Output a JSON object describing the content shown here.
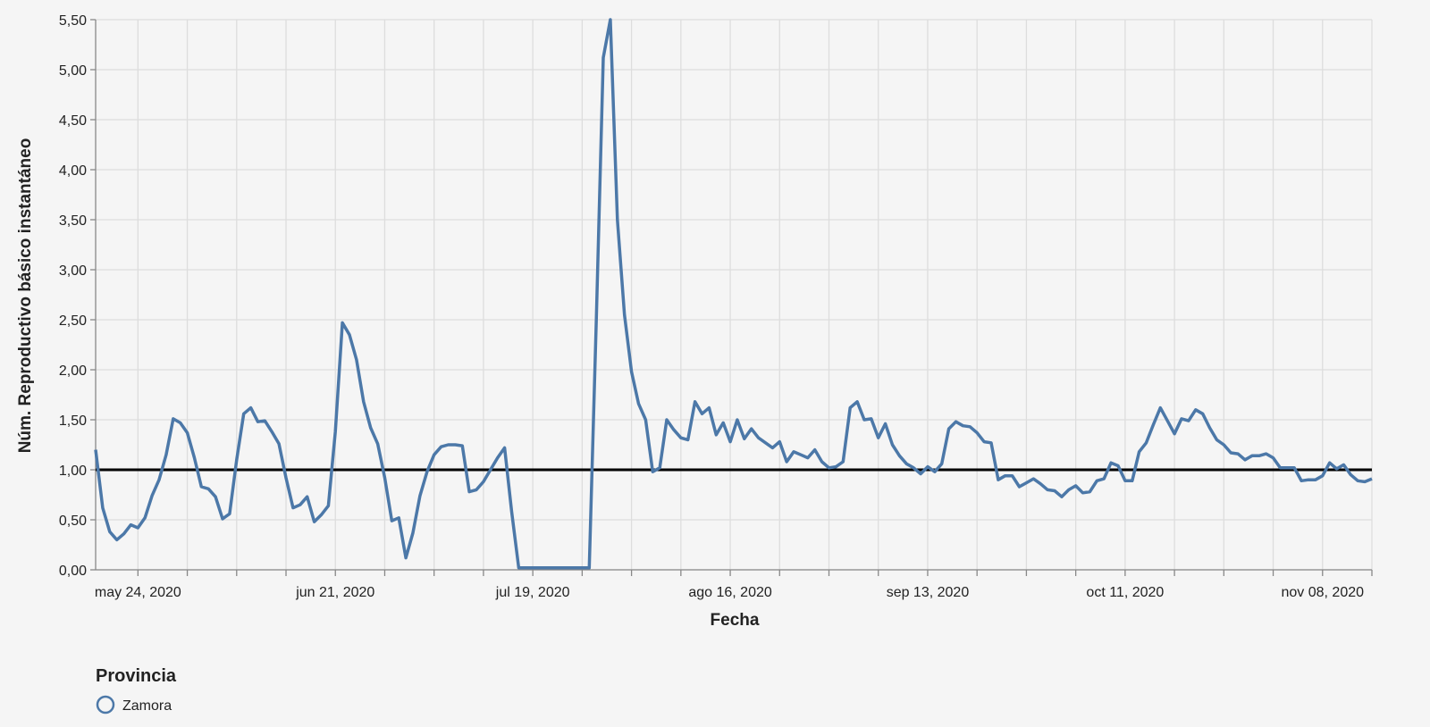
{
  "chart_data": {
    "type": "line",
    "xlabel": "Fecha",
    "ylabel": "Núm. Reproductivo básico instantáneo",
    "x_start": "2020-05-18",
    "x_end": "2020-11-15",
    "ylim": [
      0,
      5.5
    ],
    "y_ticks": [
      0,
      0.5,
      1.0,
      1.5,
      2.0,
      2.5,
      3.0,
      3.5,
      4.0,
      4.5,
      5.0,
      5.5
    ],
    "y_tick_labels": [
      "0,00",
      "0,50",
      "1,00",
      "1,50",
      "2,00",
      "2,50",
      "3,00",
      "3,50",
      "4,00",
      "4,50",
      "5,00",
      "5,50"
    ],
    "x_tick_labels": [
      {
        "date": "2020-05-24",
        "label": "may 24, 2020"
      },
      {
        "date": "2020-06-21",
        "label": "jun 21, 2020"
      },
      {
        "date": "2020-07-19",
        "label": "jul 19, 2020"
      },
      {
        "date": "2020-08-16",
        "label": "ago 16, 2020"
      },
      {
        "date": "2020-09-13",
        "label": "sep 13, 2020"
      },
      {
        "date": "2020-10-11",
        "label": "oct 11, 2020"
      },
      {
        "date": "2020-11-08",
        "label": "nov 08, 2020"
      }
    ],
    "reference_line": 1.0,
    "grid": true,
    "legend": {
      "title": "Provincia",
      "placement": "bottom-left"
    },
    "series": [
      {
        "name": "Zamora",
        "color": "#4c78a8",
        "points": [
          [
            "2020-05-18",
            1.2
          ],
          [
            "2020-05-19",
            0.62
          ],
          [
            "2020-05-20",
            0.38
          ],
          [
            "2020-05-21",
            0.3
          ],
          [
            "2020-05-22",
            0.36
          ],
          [
            "2020-05-23",
            0.45
          ],
          [
            "2020-05-24",
            0.42
          ],
          [
            "2020-05-25",
            0.52
          ],
          [
            "2020-05-26",
            0.74
          ],
          [
            "2020-05-27",
            0.9
          ],
          [
            "2020-05-28",
            1.15
          ],
          [
            "2020-05-29",
            1.51
          ],
          [
            "2020-05-30",
            1.47
          ],
          [
            "2020-05-31",
            1.37
          ],
          [
            "2020-06-01",
            1.12
          ],
          [
            "2020-06-02",
            0.83
          ],
          [
            "2020-06-03",
            0.81
          ],
          [
            "2020-06-04",
            0.73
          ],
          [
            "2020-06-05",
            0.51
          ],
          [
            "2020-06-06",
            0.56
          ],
          [
            "2020-06-07",
            1.1
          ],
          [
            "2020-06-08",
            1.56
          ],
          [
            "2020-06-09",
            1.62
          ],
          [
            "2020-06-10",
            1.48
          ],
          [
            "2020-06-11",
            1.49
          ],
          [
            "2020-06-12",
            1.38
          ],
          [
            "2020-06-13",
            1.26
          ],
          [
            "2020-06-14",
            0.92
          ],
          [
            "2020-06-15",
            0.62
          ],
          [
            "2020-06-16",
            0.65
          ],
          [
            "2020-06-17",
            0.73
          ],
          [
            "2020-06-18",
            0.48
          ],
          [
            "2020-06-19",
            0.55
          ],
          [
            "2020-06-20",
            0.64
          ],
          [
            "2020-06-21",
            1.38
          ],
          [
            "2020-06-22",
            2.47
          ],
          [
            "2020-06-23",
            2.35
          ],
          [
            "2020-06-24",
            2.1
          ],
          [
            "2020-06-25",
            1.68
          ],
          [
            "2020-06-26",
            1.42
          ],
          [
            "2020-06-27",
            1.26
          ],
          [
            "2020-06-28",
            0.92
          ],
          [
            "2020-06-29",
            0.49
          ],
          [
            "2020-06-30",
            0.52
          ],
          [
            "2020-07-01",
            0.12
          ],
          [
            "2020-07-02",
            0.37
          ],
          [
            "2020-07-03",
            0.74
          ],
          [
            "2020-07-04",
            0.98
          ],
          [
            "2020-07-05",
            1.15
          ],
          [
            "2020-07-06",
            1.23
          ],
          [
            "2020-07-07",
            1.25
          ],
          [
            "2020-07-08",
            1.25
          ],
          [
            "2020-07-09",
            1.24
          ],
          [
            "2020-07-10",
            0.78
          ],
          [
            "2020-07-11",
            0.8
          ],
          [
            "2020-07-12",
            0.88
          ],
          [
            "2020-07-13",
            1.0
          ],
          [
            "2020-07-14",
            1.12
          ],
          [
            "2020-07-15",
            1.22
          ],
          [
            "2020-07-16",
            0.58
          ],
          [
            "2020-07-17",
            0.02
          ],
          [
            "2020-07-18",
            0.02
          ],
          [
            "2020-07-19",
            0.02
          ],
          [
            "2020-07-20",
            0.02
          ],
          [
            "2020-07-21",
            0.02
          ],
          [
            "2020-07-22",
            0.02
          ],
          [
            "2020-07-23",
            0.02
          ],
          [
            "2020-07-24",
            0.02
          ],
          [
            "2020-07-25",
            0.02
          ],
          [
            "2020-07-26",
            0.02
          ],
          [
            "2020-07-27",
            0.02
          ],
          [
            "2020-07-28",
            2.5
          ],
          [
            "2020-07-29",
            5.12
          ],
          [
            "2020-07-30",
            5.5
          ],
          [
            "2020-07-31",
            3.5
          ],
          [
            "2020-08-01",
            2.55
          ],
          [
            "2020-08-02",
            1.98
          ],
          [
            "2020-08-03",
            1.66
          ],
          [
            "2020-08-04",
            1.5
          ],
          [
            "2020-08-05",
            0.98
          ],
          [
            "2020-08-06",
            1.02
          ],
          [
            "2020-08-07",
            1.5
          ],
          [
            "2020-08-08",
            1.4
          ],
          [
            "2020-08-09",
            1.32
          ],
          [
            "2020-08-10",
            1.3
          ],
          [
            "2020-08-11",
            1.68
          ],
          [
            "2020-08-12",
            1.56
          ],
          [
            "2020-08-13",
            1.62
          ],
          [
            "2020-08-14",
            1.35
          ],
          [
            "2020-08-15",
            1.47
          ],
          [
            "2020-08-16",
            1.28
          ],
          [
            "2020-08-17",
            1.5
          ],
          [
            "2020-08-18",
            1.31
          ],
          [
            "2020-08-19",
            1.41
          ],
          [
            "2020-08-20",
            1.32
          ],
          [
            "2020-08-21",
            1.27
          ],
          [
            "2020-08-22",
            1.22
          ],
          [
            "2020-08-23",
            1.28
          ],
          [
            "2020-08-24",
            1.08
          ],
          [
            "2020-08-25",
            1.18
          ],
          [
            "2020-08-26",
            1.15
          ],
          [
            "2020-08-27",
            1.12
          ],
          [
            "2020-08-28",
            1.2
          ],
          [
            "2020-08-29",
            1.08
          ],
          [
            "2020-08-30",
            1.02
          ],
          [
            "2020-08-31",
            1.03
          ],
          [
            "2020-09-01",
            1.08
          ],
          [
            "2020-09-02",
            1.62
          ],
          [
            "2020-09-03",
            1.68
          ],
          [
            "2020-09-04",
            1.5
          ],
          [
            "2020-09-05",
            1.51
          ],
          [
            "2020-09-06",
            1.32
          ],
          [
            "2020-09-07",
            1.46
          ],
          [
            "2020-09-08",
            1.25
          ],
          [
            "2020-09-09",
            1.14
          ],
          [
            "2020-09-10",
            1.06
          ],
          [
            "2020-09-11",
            1.02
          ],
          [
            "2020-09-12",
            0.96
          ],
          [
            "2020-09-13",
            1.03
          ],
          [
            "2020-09-14",
            0.98
          ],
          [
            "2020-09-15",
            1.06
          ],
          [
            "2020-09-16",
            1.41
          ],
          [
            "2020-09-17",
            1.48
          ],
          [
            "2020-09-18",
            1.44
          ],
          [
            "2020-09-19",
            1.43
          ],
          [
            "2020-09-20",
            1.37
          ],
          [
            "2020-09-21",
            1.28
          ],
          [
            "2020-09-22",
            1.27
          ],
          [
            "2020-09-23",
            0.9
          ],
          [
            "2020-09-24",
            0.94
          ],
          [
            "2020-09-25",
            0.94
          ],
          [
            "2020-09-26",
            0.83
          ],
          [
            "2020-09-27",
            0.87
          ],
          [
            "2020-09-28",
            0.91
          ],
          [
            "2020-09-29",
            0.86
          ],
          [
            "2020-09-30",
            0.8
          ],
          [
            "2020-10-01",
            0.79
          ],
          [
            "2020-10-02",
            0.73
          ],
          [
            "2020-10-03",
            0.8
          ],
          [
            "2020-10-04",
            0.84
          ],
          [
            "2020-10-05",
            0.77
          ],
          [
            "2020-10-06",
            0.78
          ],
          [
            "2020-10-07",
            0.89
          ],
          [
            "2020-10-08",
            0.91
          ],
          [
            "2020-10-09",
            1.07
          ],
          [
            "2020-10-10",
            1.04
          ],
          [
            "2020-10-11",
            0.89
          ],
          [
            "2020-10-12",
            0.89
          ],
          [
            "2020-10-13",
            1.18
          ],
          [
            "2020-10-14",
            1.27
          ],
          [
            "2020-10-15",
            1.45
          ],
          [
            "2020-10-16",
            1.62
          ],
          [
            "2020-10-17",
            1.49
          ],
          [
            "2020-10-18",
            1.36
          ],
          [
            "2020-10-19",
            1.51
          ],
          [
            "2020-10-20",
            1.49
          ],
          [
            "2020-10-21",
            1.6
          ],
          [
            "2020-10-22",
            1.56
          ],
          [
            "2020-10-23",
            1.42
          ],
          [
            "2020-10-24",
            1.3
          ],
          [
            "2020-10-25",
            1.25
          ],
          [
            "2020-10-26",
            1.17
          ],
          [
            "2020-10-27",
            1.16
          ],
          [
            "2020-10-28",
            1.1
          ],
          [
            "2020-10-29",
            1.14
          ],
          [
            "2020-10-30",
            1.14
          ],
          [
            "2020-10-31",
            1.16
          ],
          [
            "2020-11-01",
            1.12
          ],
          [
            "2020-11-02",
            1.02
          ],
          [
            "2020-11-03",
            1.02
          ],
          [
            "2020-11-04",
            1.02
          ],
          [
            "2020-11-05",
            0.89
          ],
          [
            "2020-11-06",
            0.9
          ],
          [
            "2020-11-07",
            0.9
          ],
          [
            "2020-11-08",
            0.94
          ],
          [
            "2020-11-09",
            1.07
          ],
          [
            "2020-11-10",
            1.01
          ],
          [
            "2020-11-11",
            1.05
          ],
          [
            "2020-11-12",
            0.95
          ],
          [
            "2020-11-13",
            0.89
          ],
          [
            "2020-11-14",
            0.88
          ],
          [
            "2020-11-15",
            0.91
          ]
        ]
      }
    ]
  }
}
